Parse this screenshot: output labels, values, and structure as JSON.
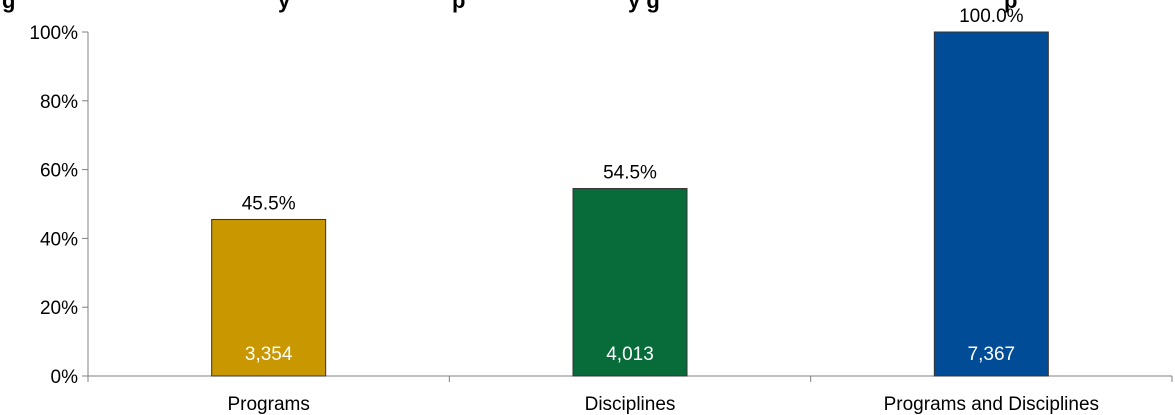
{
  "chart_data": {
    "type": "bar",
    "title": "g",
    "title_tail": "y",
    "title_mid": "p",
    "title_right": "y g",
    "title_end": "p",
    "categories": [
      "Programs",
      "Disciplines",
      "Programs and Disciplines"
    ],
    "values": [
      45.5,
      54.5,
      100.0
    ],
    "value_labels": [
      "45.5%",
      "54.5%",
      "100.0%"
    ],
    "counts": [
      "3,354",
      "4,013",
      "7,367"
    ],
    "colors": [
      "#C99700",
      "#076B3A",
      "#004C97"
    ],
    "ylim": [
      0,
      100
    ],
    "yticks": [
      "0%",
      "20%",
      "40%",
      "60%",
      "80%",
      "100%"
    ],
    "grid": false,
    "xlabel": "",
    "ylabel": ""
  }
}
